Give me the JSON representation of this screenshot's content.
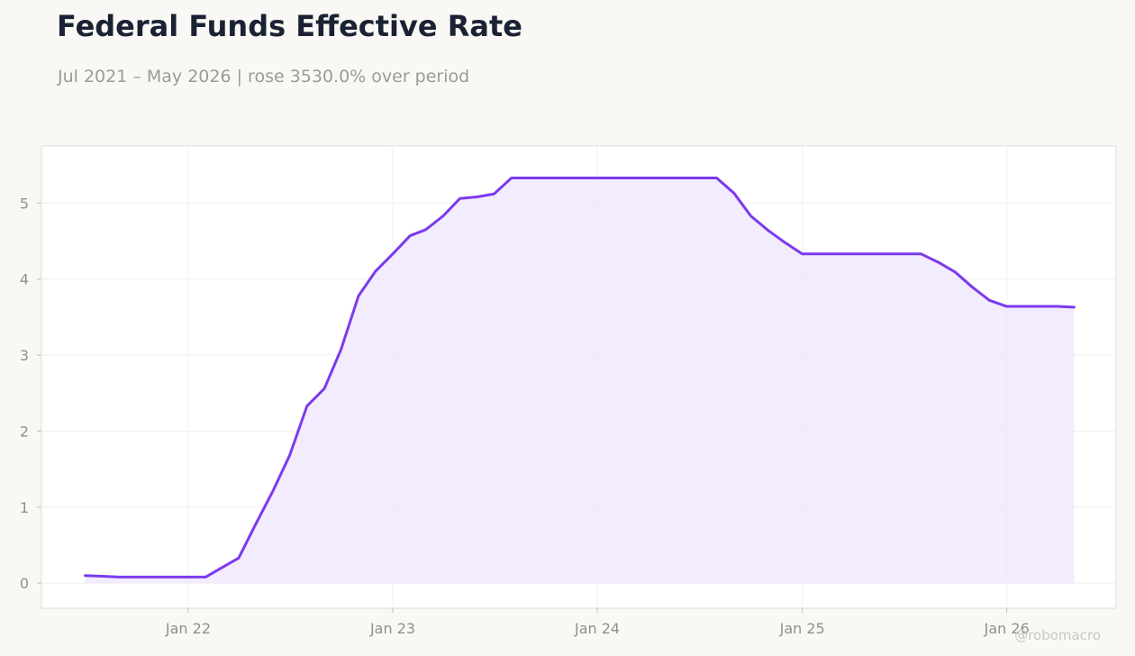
{
  "header": {
    "title": "Federal Funds Effective Rate",
    "subtitle": "Jul 2021 – May 2026 | rose 3530.0% over period"
  },
  "watermark": "@robomacro",
  "colors": {
    "line": "#7c3aed",
    "fill": "#ede4fd",
    "grid": "#efefed",
    "frame": "#dddcd8",
    "background": "#f9f8f5",
    "plot_background": "#ffffff"
  },
  "chart_data": {
    "type": "area",
    "title": "Federal Funds Effective Rate",
    "subtitle": "Jul 2021 – May 2026 | rose 3530.0% over period",
    "xlabel": "",
    "ylabel": "",
    "grid": true,
    "legend": "none",
    "ylim": [
      -0.33,
      5.75
    ],
    "xlim": [
      "2021-04-14",
      "2026-07-15"
    ],
    "x_ticks": [
      {
        "date": "2022-01-01",
        "label": "Jan 22"
      },
      {
        "date": "2023-01-01",
        "label": "Jan 23"
      },
      {
        "date": "2024-01-01",
        "label": "Jan 24"
      },
      {
        "date": "2025-01-01",
        "label": "Jan 25"
      },
      {
        "date": "2026-01-01",
        "label": "Jan 26"
      }
    ],
    "y_ticks": [
      0,
      1,
      2,
      3,
      4,
      5
    ],
    "series": [
      {
        "x": [
          "2021-07-01",
          "2021-08-01",
          "2021-09-01",
          "2021-10-01",
          "2021-11-01",
          "2021-12-01",
          "2022-01-01",
          "2022-02-01",
          "2022-03-01",
          "2022-04-01",
          "2022-05-01",
          "2022-06-01",
          "2022-07-01",
          "2022-08-01",
          "2022-09-01",
          "2022-10-01",
          "2022-11-01",
          "2022-12-01",
          "2023-01-01",
          "2023-02-01",
          "2023-03-01",
          "2023-04-01",
          "2023-05-01",
          "2023-06-01",
          "2023-07-01",
          "2023-08-01",
          "2023-09-01",
          "2023-10-01",
          "2023-11-01",
          "2023-12-01",
          "2024-01-01",
          "2024-02-01",
          "2024-03-01",
          "2024-04-01",
          "2024-05-01",
          "2024-06-01",
          "2024-07-01",
          "2024-08-01",
          "2024-09-01",
          "2024-10-01",
          "2024-11-01",
          "2024-12-01",
          "2025-01-01",
          "2025-02-01",
          "2025-03-01",
          "2025-04-01",
          "2025-05-01",
          "2025-06-01",
          "2025-07-01",
          "2025-08-01",
          "2025-09-01",
          "2025-10-01",
          "2025-11-01",
          "2025-12-01",
          "2026-01-01",
          "2026-02-01",
          "2026-03-01",
          "2026-04-01",
          "2026-05-01"
        ],
        "values": [
          0.1,
          0.09,
          0.08,
          0.08,
          0.08,
          0.08,
          0.08,
          0.08,
          0.2,
          0.33,
          0.77,
          1.21,
          1.68,
          2.33,
          2.56,
          3.08,
          3.78,
          4.1,
          4.33,
          4.57,
          4.65,
          4.83,
          5.06,
          5.08,
          5.12,
          5.33,
          5.33,
          5.33,
          5.33,
          5.33,
          5.33,
          5.33,
          5.33,
          5.33,
          5.33,
          5.33,
          5.33,
          5.33,
          5.13,
          4.83,
          4.64,
          4.48,
          4.33,
          4.33,
          4.33,
          4.33,
          4.33,
          4.33,
          4.33,
          4.33,
          4.22,
          4.09,
          3.89,
          3.72,
          3.64,
          3.64,
          3.64,
          3.64,
          3.63
        ]
      }
    ]
  }
}
